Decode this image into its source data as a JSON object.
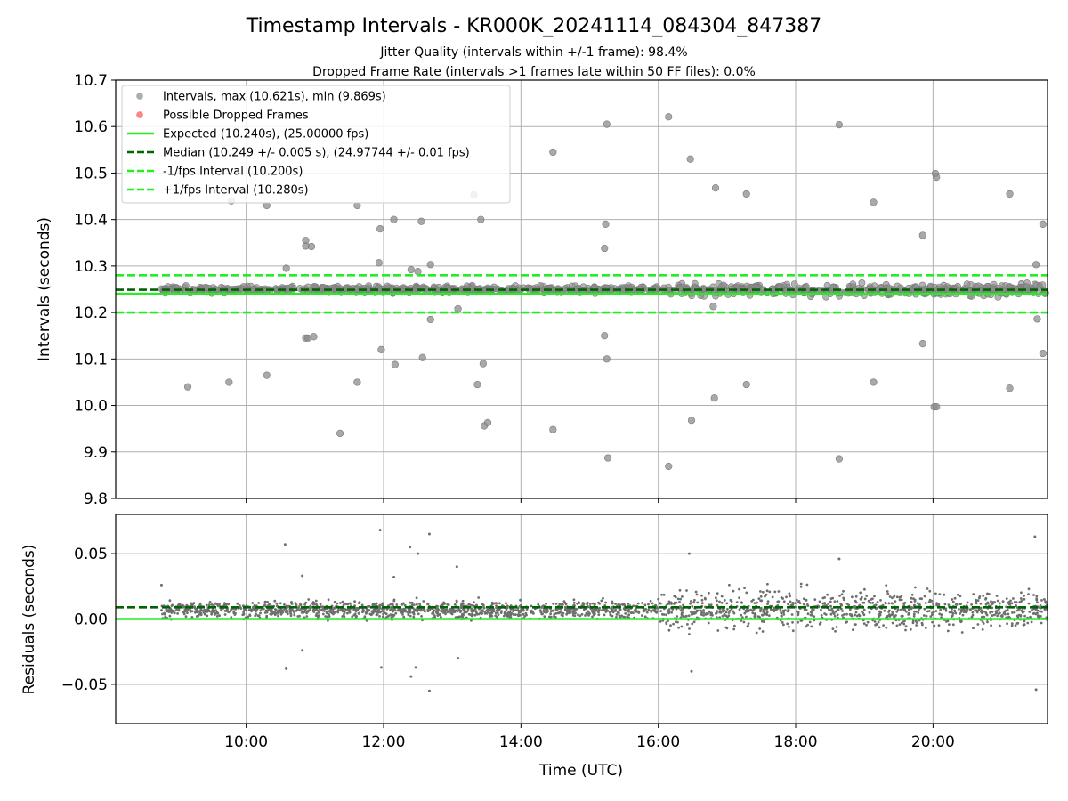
{
  "chart_data": [
    {
      "type": "scatter",
      "title": "Timestamp Intervals - KR000K_20241114_084304_847387",
      "subtitle_1": "Jitter Quality (intervals within +/-1 frame): 98.4%",
      "subtitle_2": "Dropped Frame Rate (intervals >1 frames late within 50 FF files): 0.0%",
      "ylabel": "Intervals (seconds)",
      "xlabel": "",
      "ylim": [
        9.8,
        10.7
      ],
      "xlim": [
        "08:06",
        "21:40"
      ],
      "yticks": [
        "9.8",
        "9.9",
        "10.0",
        "10.1",
        "10.2",
        "10.3",
        "10.4",
        "10.5",
        "10.6",
        "10.7"
      ],
      "xticks": [
        "10:00",
        "12:00",
        "14:00",
        "16:00",
        "18:00",
        "20:00"
      ],
      "grid": true,
      "legend_position": "top-left",
      "legend": [
        {
          "label": "Intervals, max (10.621s), min (9.869s)",
          "style": "dot",
          "color": "#999999"
        },
        {
          "label": "Possible Dropped Frames",
          "style": "dot",
          "color": "#ff6666"
        },
        {
          "label": "Expected (10.240s), (25.00000 fps)",
          "style": "solid",
          "color": "#22ee22"
        },
        {
          "label": "Median (10.249 +/- 0.005 s), (24.97744 +/- 0.01 fps)",
          "style": "dashed",
          "color": "#006400"
        },
        {
          "label": "-1/fps Interval (10.200s)",
          "style": "dashed",
          "color": "#22ee22"
        },
        {
          "label": "+1/fps Interval (10.280s)",
          "style": "dashed",
          "color": "#22ee22"
        }
      ],
      "reference_lines": [
        {
          "name": "Expected",
          "y": 10.24,
          "color": "#22ee22",
          "style": "solid"
        },
        {
          "name": "Median",
          "y": 10.249,
          "color": "#006400",
          "style": "dashed"
        },
        {
          "name": "-1/fps Interval",
          "y": 10.2,
          "color": "#22ee22",
          "style": "dashed"
        },
        {
          "name": "+1/fps Interval",
          "y": 10.28,
          "color": "#22ee22",
          "style": "dashed"
        }
      ],
      "band": {
        "x_start": "08:46",
        "x_end": "21:40",
        "center": 10.249,
        "spread": 0.012
      },
      "outliers": [
        {
          "x": "09:09",
          "y": 10.04
        },
        {
          "x": "09:45",
          "y": 10.05
        },
        {
          "x": "09:47",
          "y": 10.44
        },
        {
          "x": "10:18",
          "y": 10.43
        },
        {
          "x": "10:18",
          "y": 10.065
        },
        {
          "x": "10:35",
          "y": 10.295
        },
        {
          "x": "10:52",
          "y": 10.355
        },
        {
          "x": "10:52",
          "y": 10.343
        },
        {
          "x": "10:57",
          "y": 10.342
        },
        {
          "x": "10:52",
          "y": 10.145
        },
        {
          "x": "10:54",
          "y": 10.145
        },
        {
          "x": "10:59",
          "y": 10.148
        },
        {
          "x": "11:22",
          "y": 9.94
        },
        {
          "x": "11:37",
          "y": 10.43
        },
        {
          "x": "11:37",
          "y": 10.05
        },
        {
          "x": "11:56",
          "y": 10.307
        },
        {
          "x": "11:57",
          "y": 10.38
        },
        {
          "x": "11:58",
          "y": 10.12
        },
        {
          "x": "12:09",
          "y": 10.4
        },
        {
          "x": "12:10",
          "y": 10.088
        },
        {
          "x": "12:24",
          "y": 10.292
        },
        {
          "x": "12:30",
          "y": 10.288
        },
        {
          "x": "12:33",
          "y": 10.396
        },
        {
          "x": "12:34",
          "y": 10.103
        },
        {
          "x": "12:41",
          "y": 10.303
        },
        {
          "x": "12:41",
          "y": 10.185
        },
        {
          "x": "13:05",
          "y": 10.208
        },
        {
          "x": "13:19",
          "y": 10.453
        },
        {
          "x": "13:22",
          "y": 10.045
        },
        {
          "x": "13:25",
          "y": 10.4
        },
        {
          "x": "13:27",
          "y": 10.09
        },
        {
          "x": "13:28",
          "y": 9.956
        },
        {
          "x": "13:31",
          "y": 9.963
        },
        {
          "x": "14:28",
          "y": 10.545
        },
        {
          "x": "14:28",
          "y": 9.948
        },
        {
          "x": "15:13",
          "y": 10.15
        },
        {
          "x": "15:13",
          "y": 10.338
        },
        {
          "x": "15:14",
          "y": 10.39
        },
        {
          "x": "15:15",
          "y": 10.605
        },
        {
          "x": "15:15",
          "y": 10.1
        },
        {
          "x": "15:16",
          "y": 9.887
        },
        {
          "x": "16:09",
          "y": 10.621
        },
        {
          "x": "16:09",
          "y": 9.869
        },
        {
          "x": "16:28",
          "y": 10.53
        },
        {
          "x": "16:29",
          "y": 9.968
        },
        {
          "x": "16:48",
          "y": 10.213
        },
        {
          "x": "16:49",
          "y": 10.016
        },
        {
          "x": "16:50",
          "y": 10.468
        },
        {
          "x": "17:17",
          "y": 10.455
        },
        {
          "x": "17:17",
          "y": 10.045
        },
        {
          "x": "18:38",
          "y": 10.604
        },
        {
          "x": "18:38",
          "y": 9.885
        },
        {
          "x": "19:08",
          "y": 10.437
        },
        {
          "x": "19:08",
          "y": 10.05
        },
        {
          "x": "19:51",
          "y": 10.366
        },
        {
          "x": "19:51",
          "y": 10.133
        },
        {
          "x": "20:02",
          "y": 10.499
        },
        {
          "x": "20:03",
          "y": 10.491
        },
        {
          "x": "20:01",
          "y": 9.997
        },
        {
          "x": "20:03",
          "y": 9.997
        },
        {
          "x": "21:07",
          "y": 10.455
        },
        {
          "x": "21:07",
          "y": 10.037
        },
        {
          "x": "21:30",
          "y": 10.303
        },
        {
          "x": "21:31",
          "y": 10.186
        },
        {
          "x": "21:36",
          "y": 10.39
        },
        {
          "x": "21:36",
          "y": 10.112
        }
      ]
    },
    {
      "type": "scatter",
      "title": "",
      "xlabel": "Time (UTC)",
      "ylabel": "Residuals (seconds)",
      "ylim": [
        -0.08,
        0.08
      ],
      "xlim": [
        "08:06",
        "21:40"
      ],
      "yticks": [
        "−0.05",
        "0.00",
        "0.05"
      ],
      "xticks": [
        "10:00",
        "12:00",
        "14:00",
        "16:00",
        "18:00",
        "20:00"
      ],
      "grid": true,
      "reference_lines": [
        {
          "name": "Expected",
          "y": 0.0,
          "color": "#22ee22",
          "style": "solid"
        },
        {
          "name": "Median",
          "y": 0.009,
          "color": "#006400",
          "style": "dashed"
        }
      ],
      "band": {
        "x_start": "08:46",
        "x_end": "21:40",
        "center": 0.007,
        "spread": 0.012
      },
      "outliers": [
        {
          "x": "08:46",
          "y": 0.026
        },
        {
          "x": "10:34",
          "y": 0.057
        },
        {
          "x": "10:35",
          "y": -0.038
        },
        {
          "x": "10:49",
          "y": 0.033
        },
        {
          "x": "10:49",
          "y": -0.024
        },
        {
          "x": "11:57",
          "y": 0.068
        },
        {
          "x": "11:58",
          "y": -0.037
        },
        {
          "x": "12:09",
          "y": 0.032
        },
        {
          "x": "12:23",
          "y": 0.055
        },
        {
          "x": "12:30",
          "y": 0.05
        },
        {
          "x": "12:28",
          "y": -0.037
        },
        {
          "x": "12:24",
          "y": -0.044
        },
        {
          "x": "12:40",
          "y": 0.065
        },
        {
          "x": "12:40",
          "y": -0.055
        },
        {
          "x": "13:04",
          "y": 0.04
        },
        {
          "x": "13:05",
          "y": -0.03
        },
        {
          "x": "16:27",
          "y": 0.05
        },
        {
          "x": "16:29",
          "y": -0.04
        },
        {
          "x": "18:38",
          "y": 0.046
        },
        {
          "x": "21:29",
          "y": 0.063
        },
        {
          "x": "21:30",
          "y": -0.054
        }
      ]
    }
  ]
}
